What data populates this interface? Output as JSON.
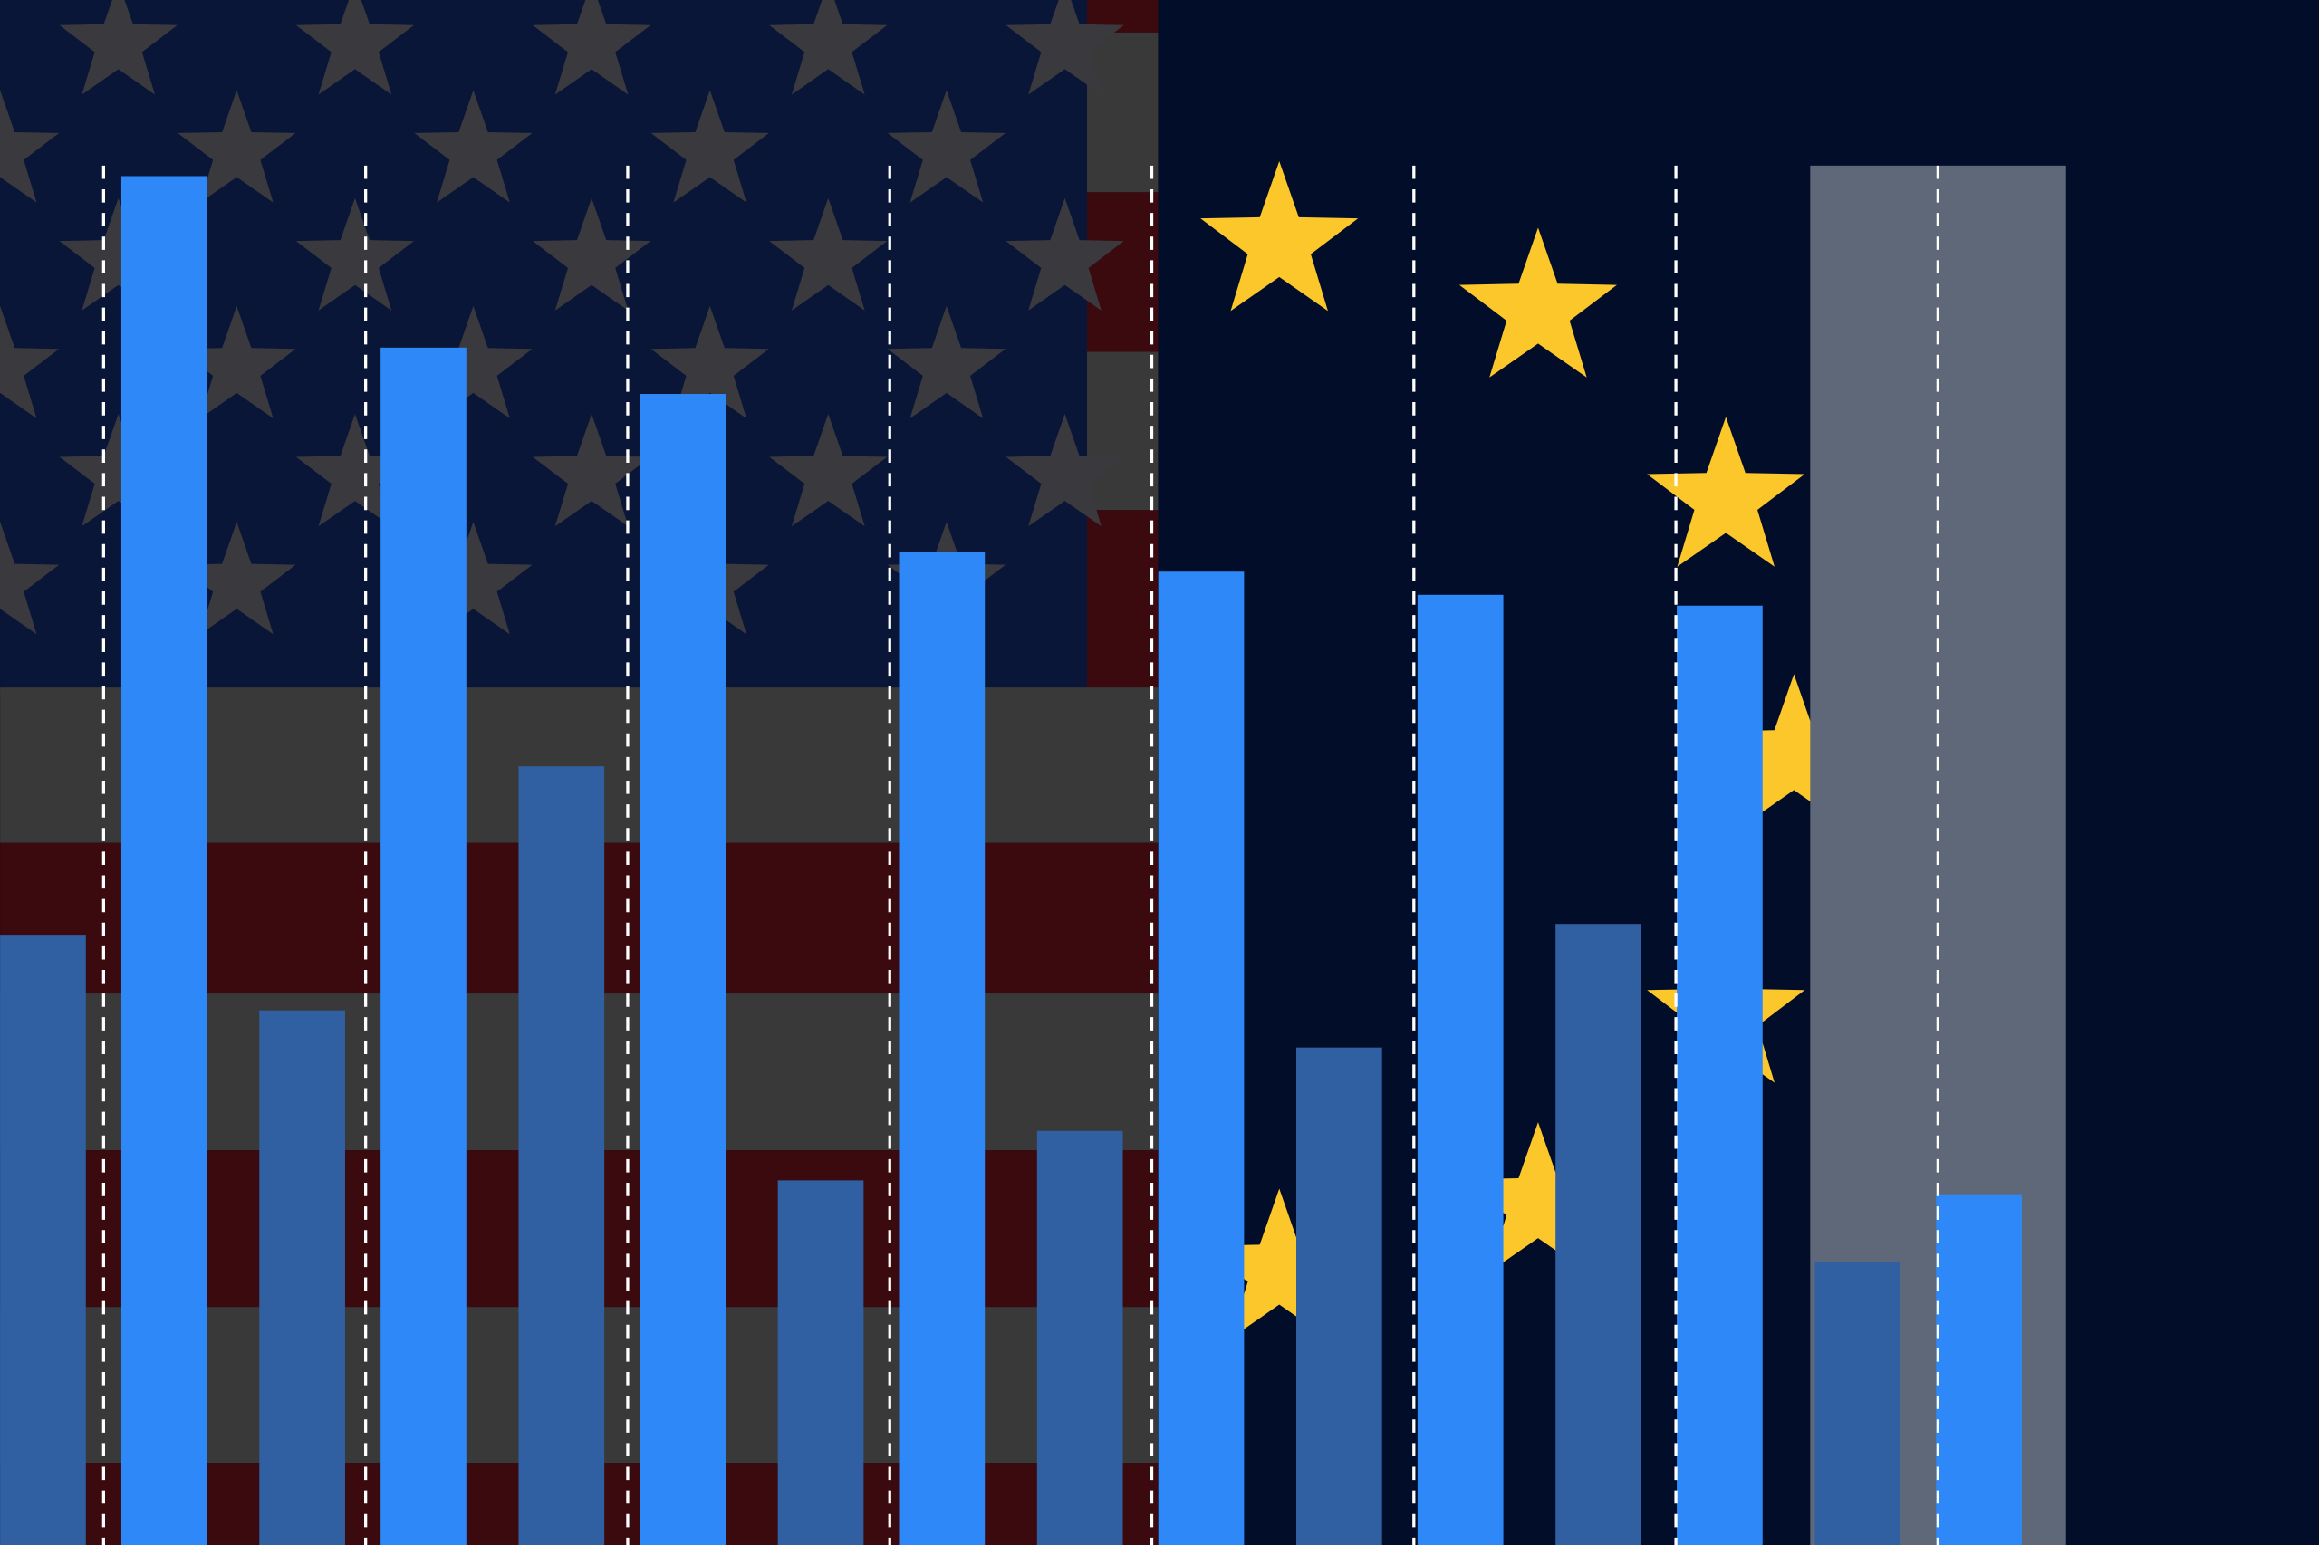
{
  "chart_data": {
    "type": "bar",
    "categories": [
      null,
      null,
      null,
      null,
      null,
      null,
      null,
      null
    ],
    "series": [
      {
        "color": "#3060a2",
        "values": [
          39.5,
          34.6,
          50.4,
          23.6,
          26.8,
          32.2,
          40.2,
          18.3
        ]
      },
      {
        "color": "#2f88f8",
        "values": [
          88.6,
          77.5,
          74.5,
          64.3,
          63.0,
          61.5,
          60.8,
          22.7
        ]
      }
    ],
    "ylim": [
      0,
      100
    ]
  }
}
